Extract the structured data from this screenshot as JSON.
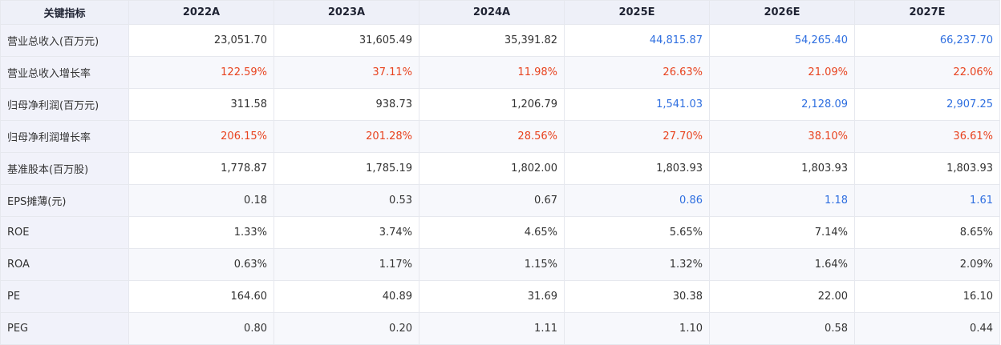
{
  "header": {
    "label": "关键指标",
    "years": [
      "2022A",
      "2023A",
      "2024A",
      "2025E",
      "2026E",
      "2027E"
    ]
  },
  "rows": [
    {
      "label": "营业总收入(百万元)",
      "values": [
        "23,051.70",
        "31,605.49",
        "35,391.82",
        "44,815.87",
        "54,265.40",
        "66,237.70"
      ]
    },
    {
      "label": "营业总收入增长率",
      "values": [
        "122.59%",
        "37.11%",
        "11.98%",
        "26.63%",
        "21.09%",
        "22.06%"
      ]
    },
    {
      "label": "归母净利润(百万元)",
      "values": [
        "311.58",
        "938.73",
        "1,206.79",
        "1,541.03",
        "2,128.09",
        "2,907.25"
      ]
    },
    {
      "label": "归母净利润增长率",
      "values": [
        "206.15%",
        "201.28%",
        "28.56%",
        "27.70%",
        "38.10%",
        "36.61%"
      ]
    },
    {
      "label": "基准股本(百万股)",
      "values": [
        "1,778.87",
        "1,785.19",
        "1,802.00",
        "1,803.93",
        "1,803.93",
        "1,803.93"
      ]
    },
    {
      "label": "EPS摊薄(元)",
      "values": [
        "0.18",
        "0.53",
        "0.67",
        "0.86",
        "1.18",
        "1.61"
      ]
    },
    {
      "label": "ROE",
      "values": [
        "1.33%",
        "3.74%",
        "4.65%",
        "5.65%",
        "7.14%",
        "8.65%"
      ]
    },
    {
      "label": "ROA",
      "values": [
        "0.63%",
        "1.17%",
        "1.15%",
        "1.32%",
        "1.64%",
        "2.09%"
      ]
    },
    {
      "label": "PE",
      "values": [
        "164.60",
        "40.89",
        "31.69",
        "30.38",
        "22.00",
        "16.10"
      ]
    },
    {
      "label": "PEG",
      "values": [
        "0.80",
        "0.20",
        "1.11",
        "1.10",
        "0.58",
        "0.44"
      ]
    }
  ],
  "colors": {
    "header_bg": "#eef0f8",
    "label_bg": "#f1f2fa",
    "growth_red": "#e8431f",
    "estimate_blue": "#2f6fe0",
    "text": "#333333"
  }
}
